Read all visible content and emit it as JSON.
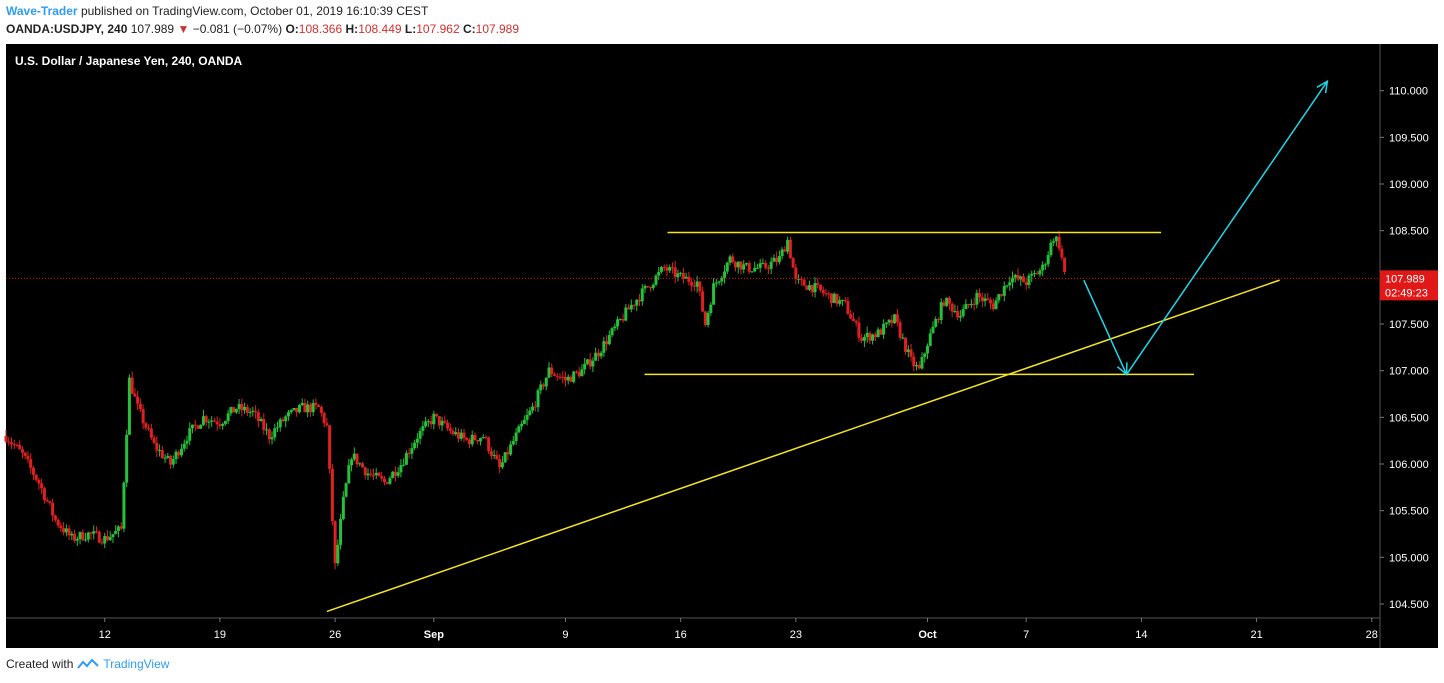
{
  "header": {
    "author": "Wave-Trader",
    "published_text": "published on TradingView.com, October 01, 2019 16:10:39 CEST",
    "symbol": "OANDA:USDJPY, 240",
    "last": "107.989",
    "change": "−0.081 (−0.07%)",
    "open_label": "O:",
    "open": "108.366",
    "high_label": "H:",
    "high": "108.449",
    "low_label": "L:",
    "low": "107.962",
    "close_label": "C:",
    "close": "107.989"
  },
  "footer": {
    "created_with": "Created with",
    "brand": "TradingView"
  },
  "colors": {
    "background": "#000000",
    "up": "#26c03a",
    "down": "#e02020",
    "trendline": "#f5e51f",
    "arrow": "#1fd8ea",
    "price_tag": "#e01818"
  },
  "chart_data": {
    "type": "candlestick",
    "title": "U.S. Dollar / Japanese Yen, 240, OANDA",
    "y_axis": {
      "ticks": [
        "110.000",
        "109.500",
        "109.000",
        "108.500",
        "108.000",
        "107.500",
        "107.000",
        "106.500",
        "106.000",
        "105.500",
        "105.000",
        "104.500"
      ],
      "range": [
        104.35,
        110.5
      ]
    },
    "x_axis": {
      "ticks": [
        "12",
        "19",
        "26",
        "Sep",
        "9",
        "16",
        "23",
        "Oct",
        "7",
        "14",
        "21",
        "28"
      ],
      "tick_days": [
        12,
        19,
        26,
        32,
        40,
        47,
        54,
        62,
        68,
        75,
        82,
        89
      ],
      "range_days": [
        6,
        89.5
      ]
    },
    "last_price": {
      "value": 107.989,
      "label": "107.989",
      "countdown": "02:49:23"
    },
    "price_anchors": [
      [
        6,
        106.3
      ],
      [
        7,
        106.1
      ],
      [
        8,
        105.8
      ],
      [
        9,
        105.4
      ],
      [
        10,
        105.2
      ],
      [
        11,
        105.25
      ],
      [
        12,
        105.2
      ],
      [
        13,
        105.3
      ],
      [
        13.5,
        106.9
      ],
      [
        14,
        106.6
      ],
      [
        15,
        106.2
      ],
      [
        16,
        106.0
      ],
      [
        17,
        106.3
      ],
      [
        18,
        106.5
      ],
      [
        19,
        106.45
      ],
      [
        20,
        106.6
      ],
      [
        21,
        106.55
      ],
      [
        22,
        106.3
      ],
      [
        23,
        106.5
      ],
      [
        24,
        106.6
      ],
      [
        25,
        106.6
      ],
      [
        25.5,
        106.4
      ],
      [
        26,
        104.9
      ],
      [
        26.5,
        105.6
      ],
      [
        27,
        106.1
      ],
      [
        28,
        105.9
      ],
      [
        29,
        105.8
      ],
      [
        30,
        106.0
      ],
      [
        31,
        106.3
      ],
      [
        32,
        106.5
      ],
      [
        33,
        106.35
      ],
      [
        34,
        106.25
      ],
      [
        35,
        106.3
      ],
      [
        36,
        105.95
      ],
      [
        37,
        106.3
      ],
      [
        38,
        106.6
      ],
      [
        39,
        107.0
      ],
      [
        40,
        106.9
      ],
      [
        41,
        107.0
      ],
      [
        42,
        107.2
      ],
      [
        43,
        107.45
      ],
      [
        44,
        107.7
      ],
      [
        45,
        107.9
      ],
      [
        46,
        108.1
      ],
      [
        47,
        108.0
      ],
      [
        48,
        107.95
      ],
      [
        48.5,
        107.5
      ],
      [
        49,
        107.9
      ],
      [
        50,
        108.2
      ],
      [
        51,
        108.1
      ],
      [
        52,
        108.1
      ],
      [
        53,
        108.2
      ],
      [
        53.5,
        108.4
      ],
      [
        54,
        107.95
      ],
      [
        55,
        107.9
      ],
      [
        56,
        107.8
      ],
      [
        57,
        107.7
      ],
      [
        58,
        107.35
      ],
      [
        59,
        107.4
      ],
      [
        60,
        107.55
      ],
      [
        61,
        107.1
      ],
      [
        61.5,
        107.0
      ],
      [
        62,
        107.3
      ],
      [
        63,
        107.75
      ],
      [
        64,
        107.6
      ],
      [
        65,
        107.8
      ],
      [
        66,
        107.7
      ],
      [
        67,
        108.0
      ],
      [
        68,
        107.95
      ],
      [
        69,
        108.1
      ],
      [
        69.7,
        108.45
      ],
      [
        70,
        108.35
      ],
      [
        70.4,
        107.99
      ]
    ],
    "drawings": [
      {
        "name": "upper-horizontal-line",
        "type": "line",
        "from": [
          46.2,
          108.48
        ],
        "to": [
          76.2,
          108.48
        ]
      },
      {
        "name": "lower-horizontal-line",
        "type": "line",
        "from": [
          44.8,
          106.96
        ],
        "to": [
          78.2,
          106.96
        ]
      },
      {
        "name": "ascending-trendline",
        "type": "line",
        "from": [
          25.5,
          104.42
        ],
        "to": [
          83.4,
          107.97
        ]
      },
      {
        "name": "projection-arrow-down",
        "type": "arrow",
        "from": [
          71.5,
          107.97
        ],
        "to": [
          74.1,
          106.96
        ]
      },
      {
        "name": "projection-arrow-up",
        "type": "arrow",
        "from": [
          74.1,
          106.96
        ],
        "to": [
          86.3,
          110.1
        ]
      }
    ]
  }
}
